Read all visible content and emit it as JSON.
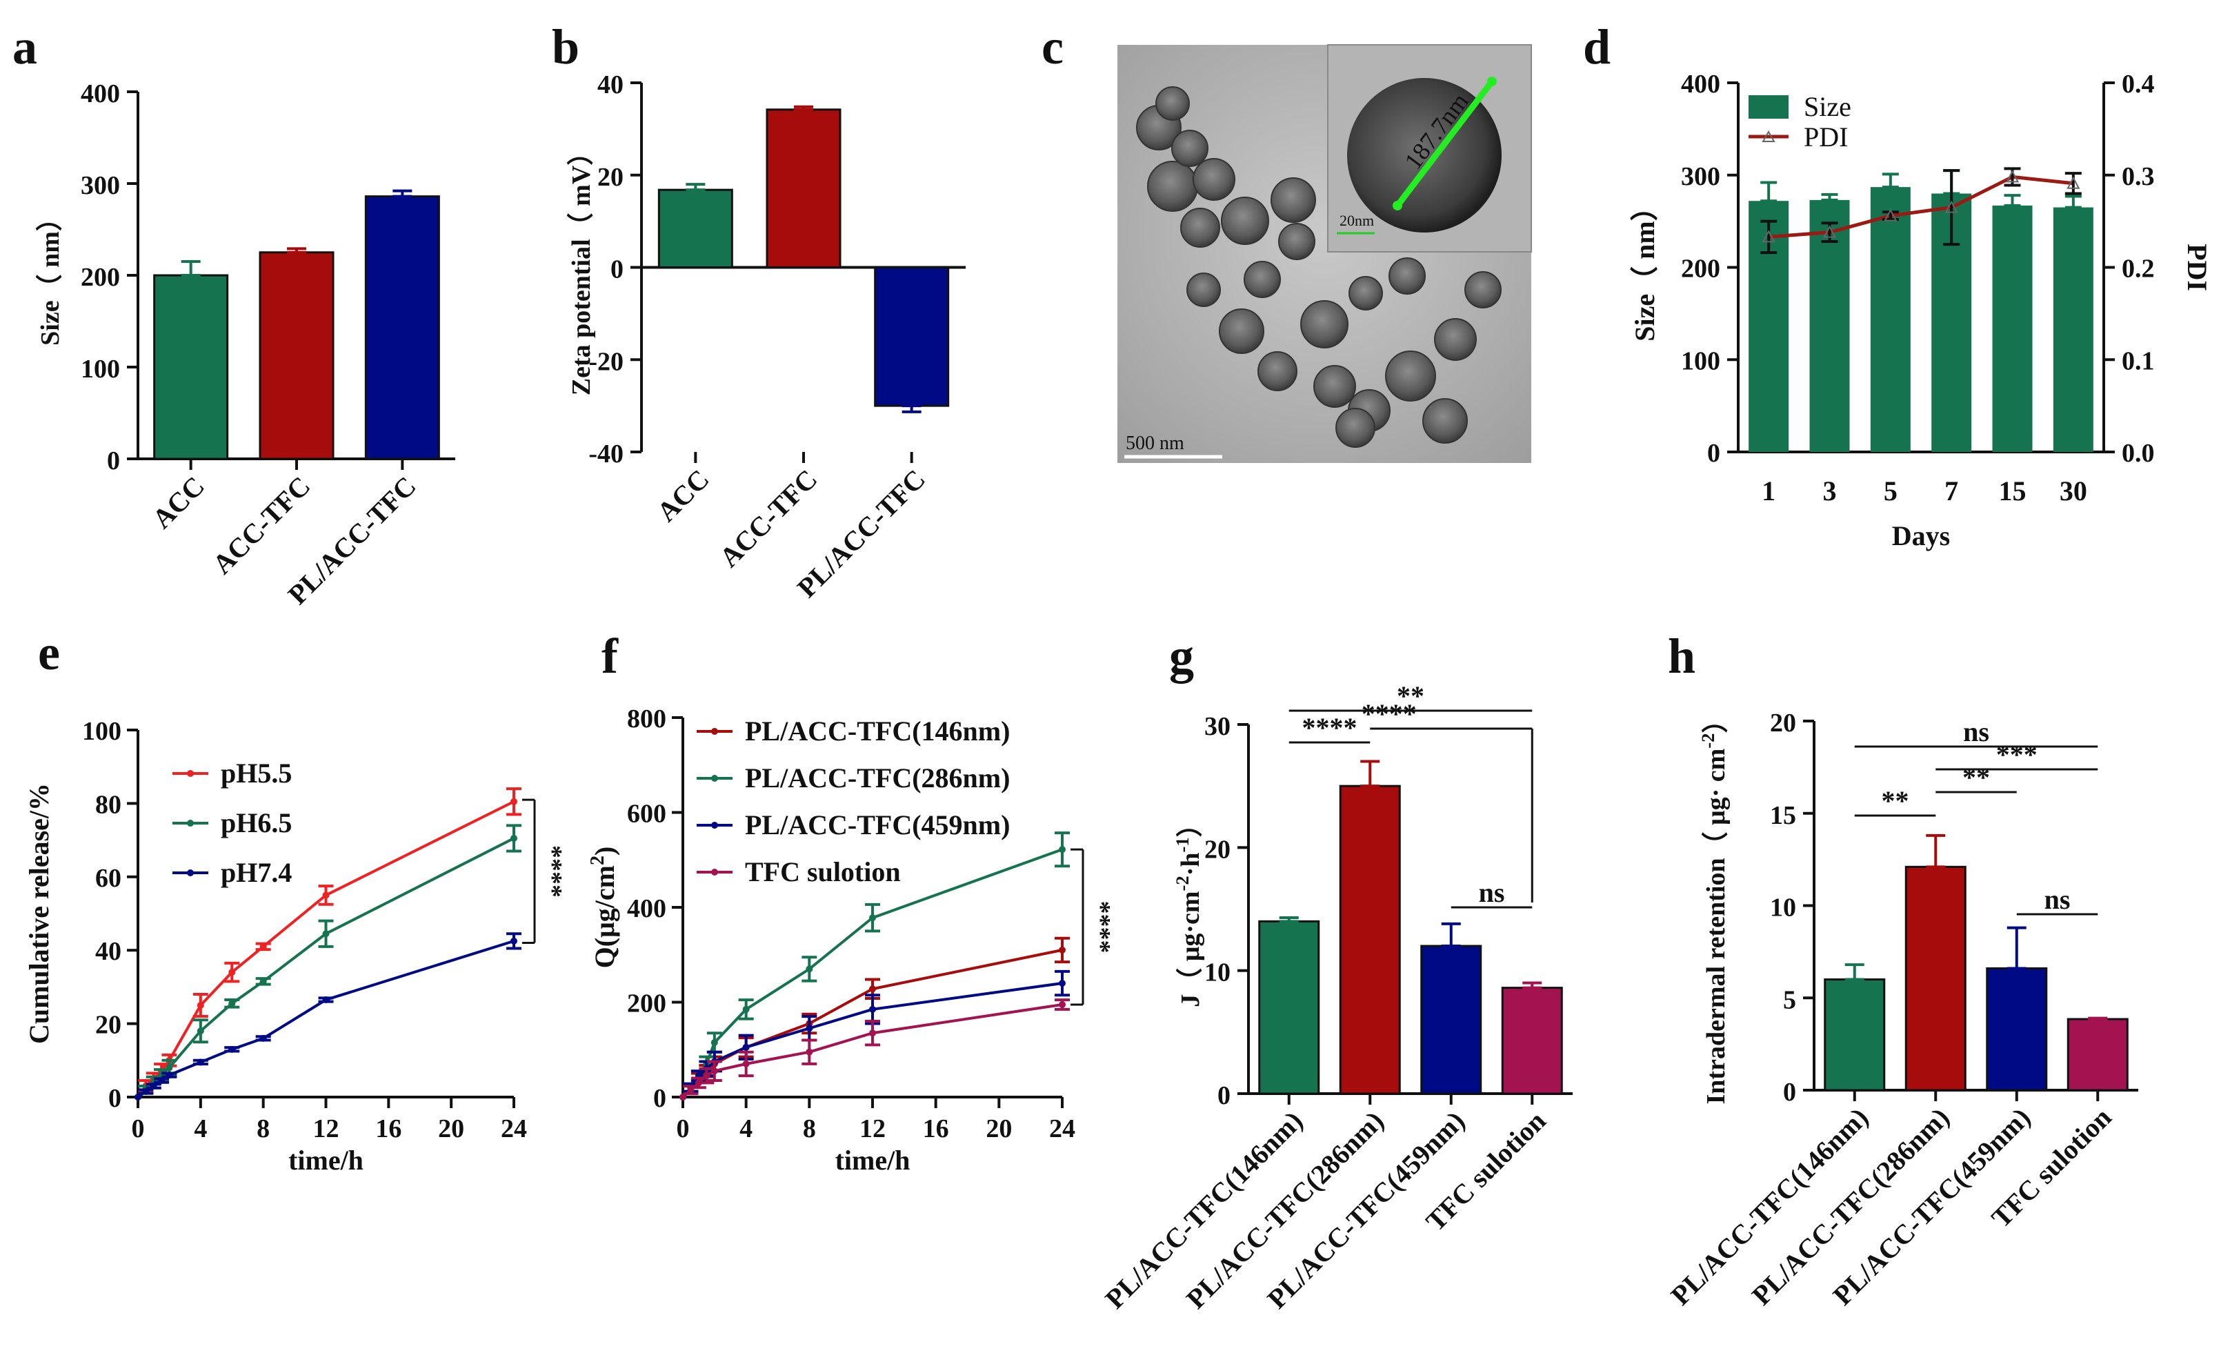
{
  "colors": {
    "green": "#157350",
    "red": "#a60c0c",
    "navy": "#000a85",
    "magenta": "#a3134f",
    "red_line": "#ee2222",
    "dark_red": "#9b1b14",
    "axis": "#111111"
  },
  "chart_data": [
    {
      "id": "a",
      "panel_letter": "a",
      "type": "bar",
      "ylabel": "Size（ nm）",
      "ylim": [
        0,
        400
      ],
      "yticks": [
        0,
        100,
        200,
        300,
        400
      ],
      "categories": [
        "ACC",
        "ACC-TFC",
        "PL/ACC-TFC"
      ],
      "values": [
        200,
        225,
        286
      ],
      "errors": [
        15,
        4,
        6
      ],
      "colors": [
        "#157350",
        "#a60c0c",
        "#000a85"
      ]
    },
    {
      "id": "b",
      "panel_letter": "b",
      "type": "bar",
      "ylabel": "Zeta potential（ mV）",
      "ylim": [
        -40,
        40
      ],
      "yticks": [
        -40,
        -20,
        0,
        20,
        40
      ],
      "categories": [
        "ACC",
        "ACC-TFC",
        "PL/ACC-TFC"
      ],
      "values": [
        16.8,
        34.2,
        -30.0
      ],
      "errors": [
        1.2,
        0.6,
        1.3
      ],
      "colors": [
        "#157350",
        "#a60c0c",
        "#000a85"
      ]
    },
    {
      "id": "d",
      "panel_letter": "d",
      "type": "bar+line",
      "xlabel": "Days",
      "ylabel": "Size（ nm）",
      "y2label": "PDI",
      "ylim": [
        0,
        400
      ],
      "yticks": [
        0,
        100,
        200,
        300,
        400
      ],
      "y2lim": [
        0,
        0.4
      ],
      "y2ticks": [
        "0.0",
        "0.1",
        "0.2",
        "0.3",
        "0.4"
      ],
      "categories": [
        "1",
        "3",
        "5",
        "7",
        "15",
        "30"
      ],
      "series": [
        {
          "name": "Size",
          "type": "bar",
          "color": "#157350",
          "values": [
            272,
            273,
            287,
            280,
            267,
            265
          ],
          "errors": [
            20,
            6,
            14,
            25,
            11,
            12
          ]
        },
        {
          "name": "PDI",
          "type": "line",
          "color": "#9b1b14",
          "values": [
            0.233,
            0.238,
            0.256,
            0.265,
            0.298,
            0.291
          ],
          "errors": [
            0.017,
            0.01,
            0.004,
            0.04,
            0.009,
            0.011
          ]
        }
      ]
    },
    {
      "id": "e",
      "panel_letter": "e",
      "type": "line",
      "xlabel": "time/h",
      "ylabel": "Cumulative release/%",
      "xlim": [
        0,
        24
      ],
      "xticks": [
        0,
        4,
        8,
        12,
        16,
        20,
        24
      ],
      "ylim": [
        0,
        100
      ],
      "yticks": [
        0,
        20,
        40,
        60,
        80,
        100
      ],
      "x": [
        0,
        0.5,
        1,
        1.5,
        2,
        4,
        6,
        8,
        12,
        24
      ],
      "series": [
        {
          "name": "pH5.5",
          "color": "#ee2222",
          "values": [
            0,
            3,
            5,
            7,
            10,
            25,
            34,
            41,
            55,
            80.5
          ],
          "errors": [
            0,
            1.5,
            1.5,
            2,
            1.5,
            3,
            2.5,
            0.8,
            2.5,
            3.5
          ]
        },
        {
          "name": "pH6.5",
          "color": "#157350",
          "values": [
            0,
            2,
            4,
            6,
            8,
            18,
            25.5,
            31.5,
            44.5,
            70.5
          ],
          "errors": [
            0,
            1,
            1.5,
            1.5,
            2,
            3,
            1,
            0.8,
            3.5,
            3.5
          ]
        },
        {
          "name": "pH7.4",
          "color": "#000a85",
          "values": [
            0,
            1.5,
            3,
            4.5,
            6,
            9.5,
            13,
            16,
            26.5,
            42.5
          ],
          "errors": [
            0,
            0.5,
            0.5,
            0.5,
            0.5,
            0.5,
            0.5,
            0.5,
            0.5,
            2
          ]
        }
      ],
      "significance": "****"
    },
    {
      "id": "f",
      "panel_letter": "f",
      "type": "line",
      "xlabel": "time/h",
      "ylabel": "Q(μg/cm²)",
      "xlim": [
        0,
        24
      ],
      "xticks": [
        0,
        4,
        8,
        12,
        16,
        20,
        24
      ],
      "ylim": [
        0,
        800
      ],
      "yticks": [
        0,
        200,
        400,
        600,
        800
      ],
      "x": [
        0,
        0.5,
        1,
        1.5,
        2,
        4,
        8,
        12,
        24
      ],
      "series": [
        {
          "name": "PL/ACC-TFC(146nm)",
          "color": "#a60c0c",
          "values": [
            0,
            20,
            40,
            55,
            70,
            105,
            155,
            228,
            310
          ],
          "errors": [
            0,
            8,
            10,
            12,
            15,
            20,
            20,
            20,
            25
          ]
        },
        {
          "name": "PL/ACC-TFC(286nm)",
          "color": "#157350",
          "values": [
            0,
            20,
            45,
            70,
            115,
            185,
            270,
            378,
            522
          ],
          "errors": [
            0,
            8,
            10,
            15,
            20,
            20,
            25,
            28,
            35
          ]
        },
        {
          "name": "PL/ACC-TFC(459nm)",
          "color": "#000a85",
          "values": [
            0,
            20,
            45,
            60,
            75,
            105,
            145,
            185,
            240
          ],
          "errors": [
            0,
            8,
            10,
            15,
            20,
            25,
            25,
            30,
            25
          ]
        },
        {
          "name": "TFC sulotion",
          "color": "#a3134f",
          "values": [
            0,
            15,
            30,
            45,
            55,
            70,
            95,
            135,
            195
          ],
          "errors": [
            0,
            8,
            10,
            15,
            20,
            25,
            25,
            25,
            10
          ]
        }
      ],
      "significance": "****"
    },
    {
      "id": "g",
      "panel_letter": "g",
      "type": "bar",
      "ylabel": "J（ μg·cm⁻²·h⁻¹）",
      "ylim": [
        0,
        30
      ],
      "yticks": [
        0,
        10,
        20,
        30
      ],
      "categories": [
        "PL/ACC-TFC(146nm)",
        "PL/ACC-TFC(286nm)",
        "PL/ACC-TFC(459nm)",
        "TFC sulotion"
      ],
      "values": [
        14.0,
        25.0,
        12.0,
        8.6
      ],
      "errors": [
        0.3,
        2.0,
        1.8,
        0.4
      ],
      "colors": [
        "#157350",
        "#a60c0c",
        "#000a85",
        "#a3134f"
      ],
      "significance": [
        {
          "label": "**",
          "from": 0,
          "to": 3
        },
        {
          "label": "****",
          "from": 0,
          "to": 1
        },
        {
          "label": "****",
          "from": 1,
          "to": 3
        },
        {
          "label": "ns",
          "from": 2,
          "to": 3
        }
      ]
    },
    {
      "id": "h",
      "panel_letter": "h",
      "type": "bar",
      "ylabel": "Intradermal retention（ μg· cm⁻²）",
      "ylim": [
        0,
        20
      ],
      "yticks": [
        0,
        5,
        10,
        15,
        20
      ],
      "categories": [
        "PL/ACC-TFC(146nm)",
        "PL/ACC-TFC(286nm)",
        "PL/ACC-TFC(459nm)",
        "TFC sulotion"
      ],
      "values": [
        6.0,
        12.1,
        6.6,
        3.85
      ],
      "errors": [
        0.8,
        1.7,
        2.2,
        0.05
      ],
      "colors": [
        "#157350",
        "#a60c0c",
        "#000a85",
        "#a3134f"
      ],
      "significance": [
        {
          "label": "ns",
          "from": 0,
          "to": 3
        },
        {
          "label": "***",
          "from": 1,
          "to": 3
        },
        {
          "label": "**",
          "from": 1,
          "to": 2
        },
        {
          "label": "**",
          "from": 0,
          "to": 1
        },
        {
          "label": "ns",
          "from": 2,
          "to": 3
        }
      ]
    }
  ],
  "image_panel": {
    "panel_letter": "c",
    "scale_bar_label": "500 nm",
    "inset_measure_label": "187.7nm",
    "inset_scale_label": "20nm"
  }
}
